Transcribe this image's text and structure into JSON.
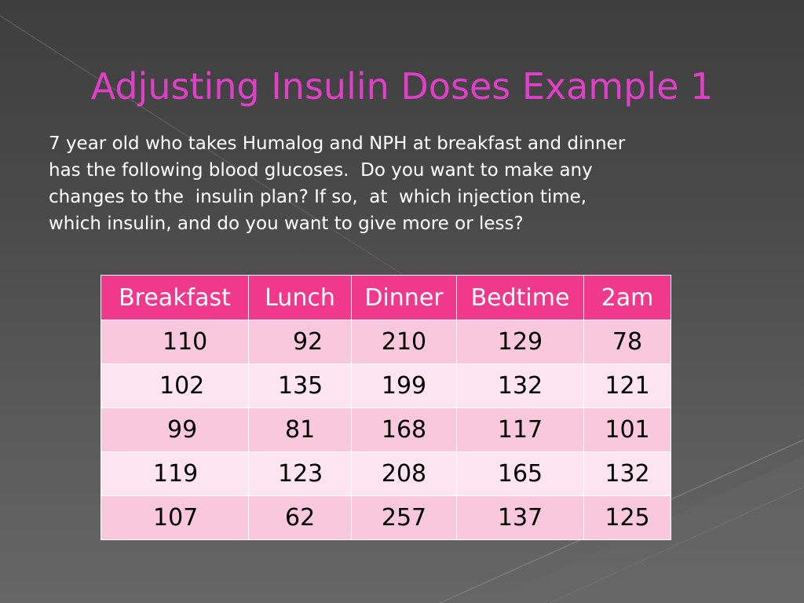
{
  "slide": {
    "title": "Adjusting Insulin Doses Example 1",
    "body_lines": [
      "7 year old who takes Humalog and NPH at breakfast and dinner",
      "has the following blood glucoses.  Do you want to make any",
      "changes to the  insulin plan? If so,  at  which injection time,",
      "which insulin, and do you want to give more or less?"
    ]
  },
  "table": {
    "headers": [
      "Breakfast",
      "Lunch",
      "Dinner",
      "Bedtime",
      "2am"
    ],
    "rows": [
      [
        "110",
        "92",
        "210",
        "129",
        "78"
      ],
      [
        "102",
        "135",
        "199",
        "132",
        "121"
      ],
      [
        "99",
        "81",
        "168",
        "117",
        "101"
      ],
      [
        "119",
        "123",
        "208",
        "165",
        "132"
      ],
      [
        "107",
        "62",
        "257",
        "137",
        "125"
      ]
    ]
  },
  "colors": {
    "title": "#e040c8",
    "header_bg": "#f0388c",
    "row_dark": "#fac8dc",
    "row_light": "#fde4ee"
  }
}
